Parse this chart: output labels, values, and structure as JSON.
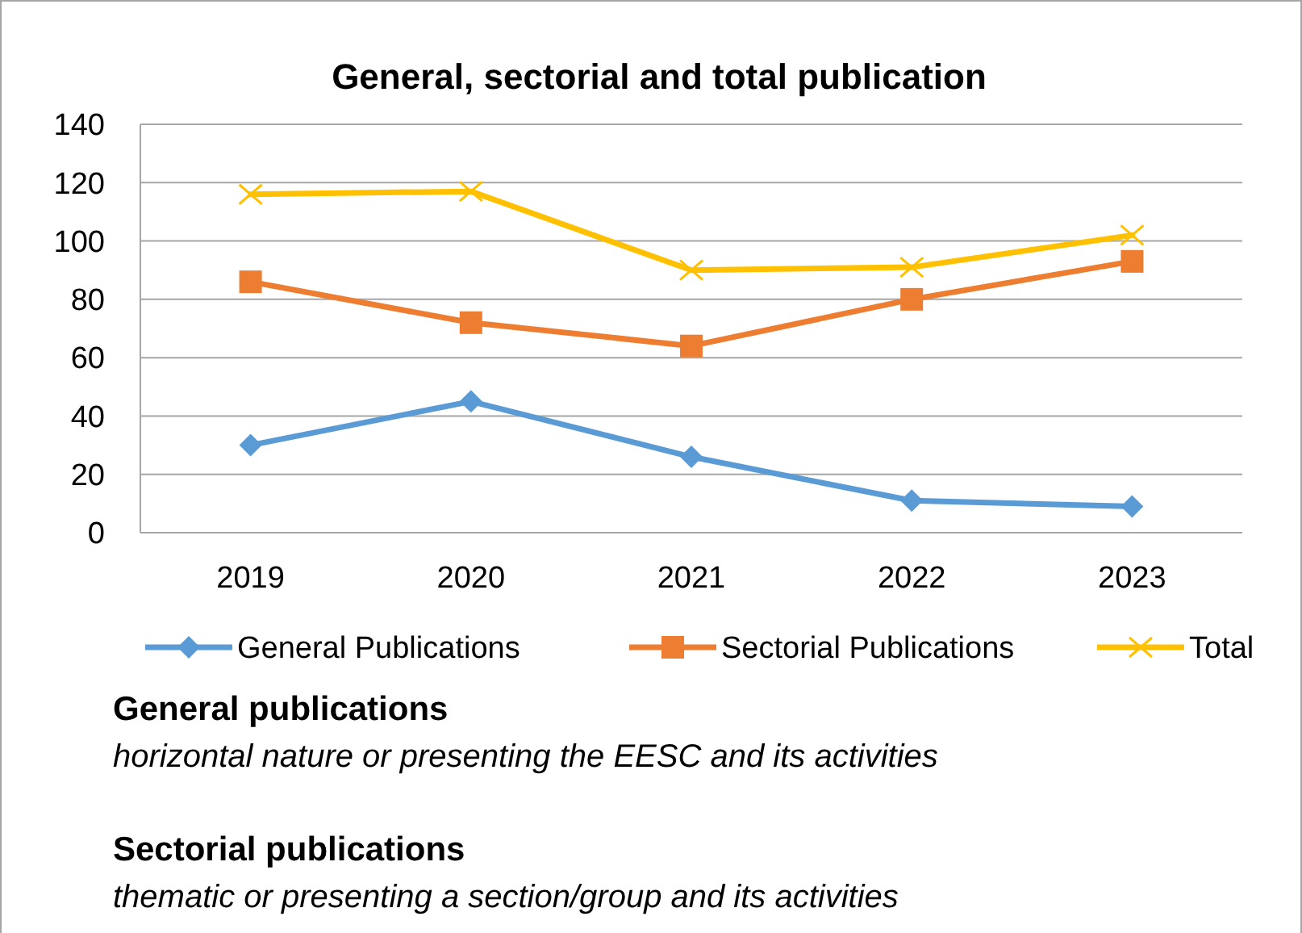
{
  "chart_data": {
    "type": "line",
    "title": "General, sectorial and total publication",
    "categories": [
      "2019",
      "2020",
      "2021",
      "2022",
      "2023"
    ],
    "series": [
      {
        "name": "General Publications",
        "color": "#5b9bd5",
        "marker": "diamond",
        "values": [
          30,
          45,
          26,
          11,
          9
        ]
      },
      {
        "name": "Sectorial Publications",
        "color": "#ed7d31",
        "marker": "square",
        "values": [
          86,
          72,
          64,
          80,
          93
        ]
      },
      {
        "name": "Total",
        "color": "#ffc000",
        "marker": "cross",
        "values": [
          116,
          117,
          90,
          91,
          102
        ]
      }
    ],
    "ylim": [
      0,
      140
    ],
    "yticks": [
      0,
      20,
      40,
      60,
      80,
      100,
      120,
      140
    ],
    "grid": "y",
    "legend": "bottom",
    "annotations": [
      "General publications",
      "horizontal nature or presenting the EESC and its activities",
      "Sectorial publications",
      "thematic or presenting a section/group and its activities"
    ]
  }
}
